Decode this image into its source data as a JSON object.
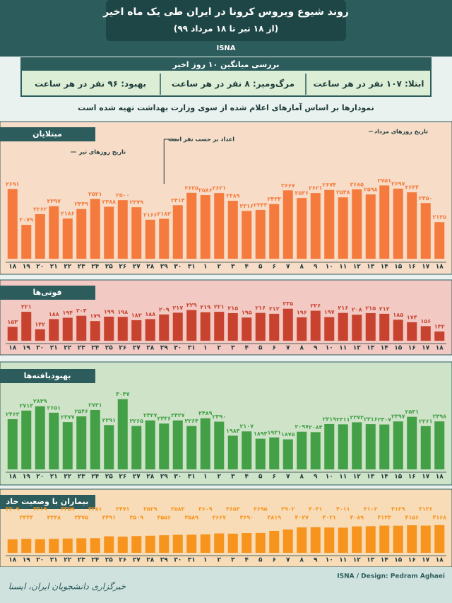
{
  "header": {
    "title": "روند شیوع ویروس کرونا در ایران طی یک ماه اخیر",
    "subtitle": "(از ۱۸ تیر تا ۱۸ مرداد ۹۹)",
    "source": "ISNA"
  },
  "summary": {
    "heading": "بررسی میانگین ۱۰ روز اخیر",
    "items": [
      "ابتلا: ۱۰۷ نفر در هر ساعت",
      "مرگ‌ومیر: ۸ نفر در هر ساعت",
      "بهبود: ۹۶ نفر در هر ساعت"
    ]
  },
  "note": "نمودارها بر اساس آمارهای اعلام شده از سوی وزارت بهداشت تهیه شده است",
  "footer": {
    "credit": "ISNA / Design: Pedram Aghaei",
    "agency": "خبرگزاری دانشجویان ایران، ایسنا"
  },
  "chart_data": [
    {
      "type": "bar",
      "title": "مبتلایان",
      "color": "#f47b3d",
      "background": "#f7dcc8",
      "ylim": [
        1500,
        2900
      ],
      "annotations": [
        "تاریخ روزهای تیر",
        "اعداد بر حسب نفر است",
        "تاریخ روزهای مرداد"
      ],
      "categories": [
        "۱۸",
        "۱۹",
        "۲۰",
        "۲۱",
        "۲۲",
        "۲۳",
        "۲۴",
        "۲۵",
        "۲۶",
        "۲۷",
        "۲۸",
        "۲۹",
        "۳۰",
        "۳۱",
        "۱",
        "۲",
        "۳",
        "۴",
        "۵",
        "۶",
        "۷",
        "۸",
        "۹",
        "۱۰",
        "۱۱",
        "۱۲",
        "۱۳",
        "۱۴",
        "۱۵",
        "۱۶",
        "۱۷",
        "۱۸"
      ],
      "values": [
        2691,
        2079,
        2262,
        2397,
        2186,
        2349,
        2521,
        2388,
        2500,
        2379,
        2166,
        2182,
        2414,
        2625,
        2586,
        2621,
        2489,
        2316,
        2333,
        2434,
        2667,
        2536,
        2621,
        2674,
        2548,
        2685,
        2598,
        2751,
        2697,
        2634,
        2450,
        2125
      ],
      "value_labels": [
        "۲۶۹۱",
        "۲۰۷۹",
        "۲۲۶۲",
        "۲۳۹۷",
        "۲۱۸۶",
        "۲۳۴۹",
        "۲۵۲۱",
        "۲۳۸۸",
        "۲۵۰۰",
        "۲۳۷۹",
        "۲۱۶۶",
        "۲۱۸۲",
        "۲۴۱۴",
        "۲۶۲۵",
        "۲۵۸۶",
        "۲۶۲۱",
        "۲۴۸۹",
        "۲۳۱۶",
        "۲۳۳۳",
        "۲۴۳۴",
        "۲۶۶۷",
        "۲۵۳۶",
        "۲۶۲۱",
        "۲۶۷۴",
        "۲۵۴۸",
        "۲۶۸۵",
        "۲۵۹۸",
        "۲۷۵۱",
        "۲۶۹۷",
        "۲۶۳۴",
        "۲۴۵۰",
        "۲۱۲۵"
      ]
    },
    {
      "type": "bar",
      "title": "فوتی‌ها",
      "color": "#c8432f",
      "background": "#f2c9c3",
      "ylim": [
        90,
        250
      ],
      "categories": [
        "۱۸",
        "۱۹",
        "۲۰",
        "۲۱",
        "۲۲",
        "۲۳",
        "۲۴",
        "۲۵",
        "۲۶",
        "۲۷",
        "۲۸",
        "۲۹",
        "۳۰",
        "۳۱",
        "۱",
        "۲",
        "۳",
        "۴",
        "۵",
        "۶",
        "۷",
        "۸",
        "۹",
        "۱۰",
        "۱۱",
        "۱۲",
        "۱۳",
        "۱۴",
        "۱۵",
        "۱۶",
        "۱۷",
        "۱۸"
      ],
      "values": [
        153,
        221,
        142,
        188,
        194,
        203,
        179,
        199,
        198,
        183,
        188,
        209,
        217,
        229,
        219,
        221,
        215,
        195,
        216,
        212,
        235,
        196,
        226,
        197,
        216,
        208,
        215,
        212,
        185,
        174,
        156,
        132
      ],
      "value_labels": [
        "۱۵۳",
        "۲۲۱",
        "۱۴۲",
        "۱۸۸",
        "۱۹۴",
        "۲۰۳",
        "۱۷۹",
        "۱۹۹",
        "۱۹۸",
        "۱۸۳",
        "۱۸۸",
        "۲۰۹",
        "۲۱۷",
        "۲۲۹",
        "۲۱۹",
        "۲۲۱",
        "۲۱۵",
        "۱۹۵",
        "۲۱۶",
        "۲۱۲",
        "۲۳۵",
        "۱۹۶",
        "۲۲۶",
        "۱۹۷",
        "۲۱۶",
        "۲۰۸",
        "۲۱۵",
        "۲۱۲",
        "۱۸۵",
        "۱۷۴",
        "۱۵۶",
        "۱۳۲"
      ]
    },
    {
      "type": "bar",
      "title": "بهبودیافته‌ها",
      "color": "#43a047",
      "background": "#cfe3c9",
      "ylim": [
        1000,
        3100
      ],
      "categories": [
        "۱۸",
        "۱۹",
        "۲۰",
        "۲۱",
        "۲۲",
        "۲۳",
        "۲۴",
        "۲۵",
        "۲۶",
        "۲۷",
        "۲۸",
        "۲۹",
        "۳۰",
        "۳۱",
        "۱",
        "۲",
        "۳",
        "۴",
        "۵",
        "۶",
        "۷",
        "۸",
        "۹",
        "۱۰",
        "۱۱",
        "۱۲",
        "۱۳",
        "۱۴",
        "۱۵",
        "۱۶",
        "۱۷",
        "۱۸"
      ],
      "values": [
        2463,
        2713,
        2839,
        2651,
        2377,
        2546,
        2731,
        2291,
        3047,
        2265,
        2427,
        2336,
        2427,
        2264,
        2489,
        2390,
        1983,
        2107,
        1894,
        1931,
        1875,
        2097,
        2084,
        2319,
        2311,
        2372,
        2316,
        2307,
        2397,
        2531,
        2261,
        2398
      ],
      "value_labels": [
        "۲۴۶۳",
        "۲۷۱۳",
        "۲۸۳۹",
        "۲۶۵۱",
        "۲۳۷۷",
        "۲۵۴۶",
        "۲۷۳۱",
        "۲۲۹۱",
        "۳۰۴۷",
        "۲۲۶۵",
        "۲۴۲۷",
        "۲۳۳۶",
        "۲۴۲۷",
        "۲۲۶۴",
        "۲۴۸۹",
        "۲۳۹۰",
        "۱۹۸۳",
        "۲۱۰۷",
        "۱۸۹۴",
        "۱۹۳۱",
        "۱۸۷۵",
        "۲۰۹۷",
        "۲۰۸۴",
        "۲۳۱۹",
        "۲۳۱۱",
        "۲۳۷۲",
        "۲۳۱۶",
        "۲۳۰۷",
        "۲۳۹۷",
        "۲۵۳۱",
        "۲۲۶۱",
        "۲۳۹۸"
      ]
    },
    {
      "type": "bar",
      "title": "بیماران با وضعیت حاد",
      "color": "#f7941e",
      "background": "#f8dcb8",
      "ylim": [
        2500,
        4200
      ],
      "categories": [
        "۱۸",
        "۱۹",
        "۲۰",
        "۲۱",
        "۲۲",
        "۲۳",
        "۲۴",
        "۲۵",
        "۲۶",
        "۲۷",
        "۲۸",
        "۲۹",
        "۳۰",
        "۳۱",
        "۱",
        "۲",
        "۳",
        "۴",
        "۵",
        "۶",
        "۷",
        "۸",
        "۹",
        "۱۰",
        "۱۱",
        "۱۲",
        "۱۳",
        "۱۴",
        "۱۵",
        "۱۶",
        "۱۷",
        "۱۸"
      ],
      "values": [
        3309,
        3344,
        3319,
        3338,
        3359,
        3375,
        3381,
        3491,
        3471,
        3509,
        3529,
        3556,
        3583,
        3589,
        3609,
        3667,
        3653,
        3690,
        3695,
        3819,
        3902,
        4027,
        4041,
        4021,
        4011,
        4089,
        4102,
        4134,
        4129,
        4156,
        4136,
        4168
      ],
      "value_labels": [
        "۳۳۰۹",
        "۳۳۴۴",
        "۳۳۱۹",
        "۳۳۳۸",
        "۳۳۵۹",
        "۳۳۷۵",
        "۳۳۸۱",
        "۳۴۹۱",
        "۳۴۷۱",
        "۳۵۰۹",
        "۳۵۲۹",
        "۳۵۵۶",
        "۳۵۸۳",
        "۳۵۸۹",
        "۳۶۰۹",
        "۳۶۶۷",
        "۳۶۵۳",
        "۳۶۹۰",
        "۳۶۹۵",
        "۳۸۱۹",
        "۳۹۰۲",
        "۴۰۲۷",
        "۴۰۴۱",
        "۴۰۲۱",
        "۴۰۱۱",
        "۴۰۸۹",
        "۴۱۰۲",
        "۴۱۳۴",
        "۴۱۲۹",
        "۴۱۵۶",
        "۴۱۳۶",
        "۴۱۶۸"
      ]
    }
  ]
}
